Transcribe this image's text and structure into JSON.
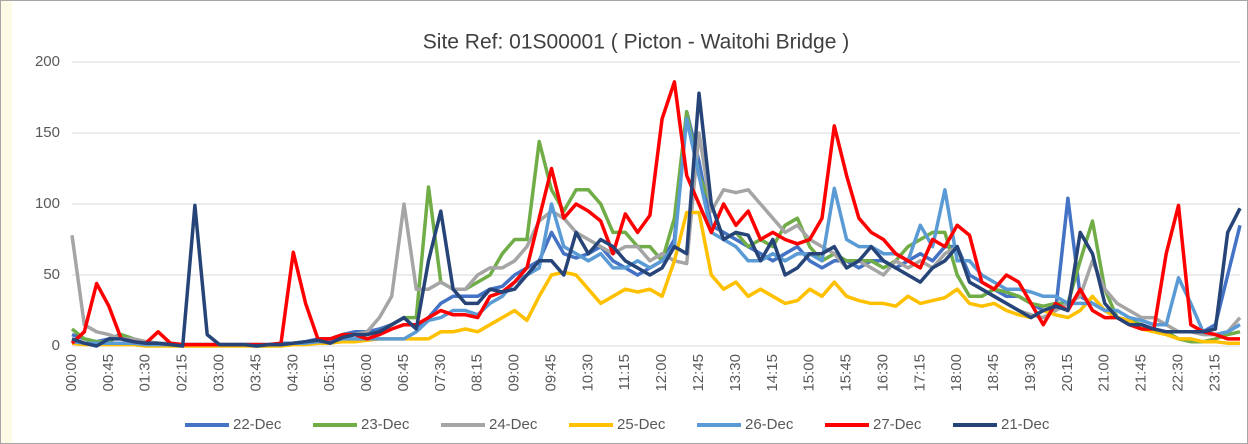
{
  "chart_data": {
    "type": "line",
    "title": "Site Ref: 01S00001 ( Picton - Waitohi Bridge )",
    "categories": [
      "00:00",
      null,
      null,
      "00:45",
      null,
      null,
      "01:30",
      null,
      null,
      "02:15",
      null,
      null,
      "03:00",
      null,
      null,
      "03:45",
      null,
      null,
      "04:30",
      null,
      null,
      "05:15",
      null,
      null,
      "06:00",
      null,
      null,
      "06:45",
      null,
      null,
      "07:30",
      null,
      null,
      "08:15",
      null,
      null,
      "09:00",
      null,
      null,
      "09:45",
      null,
      null,
      "10:30",
      null,
      null,
      "11:15",
      null,
      null,
      "12:00",
      null,
      null,
      "12:45",
      null,
      null,
      "13:30",
      null,
      null,
      "14:15",
      null,
      null,
      "15:00",
      null,
      null,
      "15:45",
      null,
      null,
      "16:30",
      null,
      null,
      "17:15",
      null,
      null,
      "18:00",
      null,
      null,
      "18:45",
      null,
      null,
      "19:30",
      null,
      null,
      "20:15",
      null,
      null,
      "21:00",
      null,
      null,
      "21:45",
      null,
      null,
      "22:30",
      null,
      null,
      "23:15",
      null,
      null
    ],
    "series": [
      {
        "name": "22-Dec",
        "color": "#4472c4",
        "values": [
          8,
          5,
          3,
          5,
          8,
          5,
          3,
          2,
          1,
          1,
          1,
          1,
          1,
          1,
          1,
          1,
          1,
          2,
          2,
          3,
          5,
          5,
          8,
          10,
          10,
          12,
          15,
          20,
          12,
          20,
          30,
          35,
          35,
          35,
          40,
          42,
          50,
          55,
          60,
          80,
          65,
          62,
          65,
          70,
          60,
          55,
          50,
          55,
          60,
          75,
          165,
          130,
          85,
          80,
          75,
          70,
          65,
          60,
          65,
          70,
          60,
          55,
          60,
          60,
          55,
          60,
          60,
          55,
          60,
          65,
          60,
          70,
          70,
          50,
          45,
          40,
          35,
          35,
          30,
          25,
          25,
          104,
          35,
          30,
          25,
          20,
          18,
          15,
          12,
          10,
          10,
          10,
          10,
          15,
          50,
          85
        ]
      },
      {
        "name": "23-Dec",
        "color": "#70ad47",
        "values": [
          12,
          5,
          3,
          3,
          8,
          5,
          3,
          2,
          1,
          1,
          1,
          1,
          1,
          1,
          1,
          0,
          0,
          1,
          2,
          3,
          3,
          2,
          5,
          8,
          8,
          10,
          15,
          20,
          20,
          112,
          45,
          40,
          40,
          45,
          50,
          65,
          75,
          75,
          144,
          110,
          95,
          110,
          110,
          100,
          80,
          80,
          70,
          70,
          60,
          90,
          165,
          120,
          100,
          75,
          80,
          70,
          75,
          70,
          85,
          90,
          70,
          60,
          65,
          60,
          60,
          60,
          55,
          60,
          70,
          75,
          80,
          80,
          50,
          35,
          35,
          40,
          38,
          35,
          30,
          28,
          30,
          30,
          60,
          88,
          40,
          20,
          18,
          15,
          10,
          10,
          5,
          3,
          3,
          5,
          8,
          10
        ]
      },
      {
        "name": "24-Dec",
        "color": "#a5a5a5",
        "values": [
          78,
          15,
          10,
          8,
          5,
          5,
          3,
          2,
          2,
          1,
          1,
          1,
          1,
          1,
          1,
          1,
          1,
          1,
          2,
          3,
          3,
          2,
          5,
          8,
          10,
          20,
          35,
          100,
          40,
          40,
          45,
          40,
          40,
          50,
          55,
          55,
          60,
          70,
          88,
          95,
          90,
          80,
          75,
          70,
          65,
          70,
          70,
          60,
          65,
          60,
          58,
          150,
          95,
          110,
          108,
          110,
          100,
          90,
          80,
          85,
          75,
          70,
          65,
          55,
          60,
          55,
          50,
          60,
          55,
          60,
          55,
          65,
          70,
          45,
          40,
          35,
          30,
          25,
          22,
          20,
          25,
          30,
          35,
          60,
          40,
          30,
          25,
          20,
          20,
          15,
          10,
          10,
          8,
          8,
          10,
          20
        ]
      },
      {
        "name": "25-Dec",
        "color": "#ffc000",
        "values": [
          2,
          1,
          1,
          1,
          1,
          1,
          0,
          0,
          0,
          0,
          0,
          0,
          0,
          0,
          0,
          0,
          0,
          0,
          1,
          1,
          2,
          2,
          3,
          3,
          4,
          5,
          5,
          5,
          5,
          5,
          10,
          10,
          12,
          10,
          15,
          20,
          25,
          18,
          35,
          50,
          52,
          50,
          40,
          30,
          35,
          40,
          38,
          40,
          35,
          60,
          94,
          94,
          50,
          40,
          45,
          35,
          40,
          35,
          30,
          32,
          40,
          35,
          45,
          35,
          32,
          30,
          30,
          28,
          35,
          30,
          32,
          34,
          40,
          30,
          28,
          30,
          25,
          22,
          20,
          25,
          22,
          20,
          25,
          35,
          25,
          20,
          18,
          12,
          10,
          8,
          5,
          5,
          3,
          3,
          2,
          2
        ]
      },
      {
        "name": "26-Dec",
        "color": "#5b9bd5",
        "values": [
          3,
          2,
          2,
          2,
          2,
          2,
          1,
          1,
          1,
          1,
          1,
          1,
          1,
          1,
          1,
          1,
          1,
          1,
          2,
          2,
          3,
          3,
          5,
          5,
          5,
          5,
          5,
          5,
          10,
          18,
          20,
          25,
          25,
          22,
          30,
          35,
          45,
          50,
          55,
          100,
          70,
          65,
          60,
          65,
          55,
          55,
          60,
          55,
          60,
          70,
          160,
          120,
          80,
          75,
          70,
          60,
          60,
          65,
          60,
          65,
          65,
          60,
          111,
          75,
          70,
          70,
          65,
          65,
          60,
          85,
          70,
          110,
          60,
          60,
          50,
          45,
          40,
          40,
          38,
          35,
          35,
          30,
          30,
          30,
          25,
          25,
          20,
          18,
          15,
          15,
          48,
          30,
          10,
          8,
          10,
          15
        ]
      },
      {
        "name": "27-Dec",
        "color": "#ff0000",
        "values": [
          2,
          10,
          44,
          28,
          5,
          3,
          2,
          10,
          2,
          1,
          1,
          1,
          1,
          1,
          1,
          1,
          1,
          2,
          66,
          30,
          5,
          5,
          8,
          8,
          5,
          8,
          12,
          15,
          15,
          20,
          25,
          22,
          22,
          20,
          35,
          38,
          45,
          55,
          90,
          125,
          90,
          100,
          95,
          88,
          65,
          93,
          80,
          92,
          160,
          186,
          120,
          100,
          80,
          100,
          85,
          95,
          75,
          80,
          75,
          72,
          75,
          90,
          155,
          120,
          90,
          80,
          75,
          65,
          60,
          55,
          75,
          70,
          85,
          78,
          45,
          40,
          50,
          45,
          30,
          15,
          30,
          25,
          40,
          25,
          20,
          20,
          15,
          12,
          12,
          65,
          99,
          15,
          10,
          8,
          5,
          5
        ]
      },
      {
        "name": "21-Dec",
        "color": "#264478",
        "values": [
          5,
          2,
          0,
          5,
          5,
          3,
          2,
          2,
          1,
          0,
          99,
          8,
          1,
          1,
          1,
          0,
          1,
          1,
          2,
          3,
          4,
          2,
          6,
          8,
          8,
          10,
          15,
          20,
          12,
          60,
          95,
          40,
          30,
          30,
          40,
          38,
          40,
          50,
          60,
          60,
          50,
          80,
          65,
          75,
          70,
          60,
          55,
          50,
          55,
          70,
          65,
          178,
          100,
          75,
          80,
          78,
          60,
          75,
          50,
          55,
          65,
          65,
          70,
          55,
          60,
          70,
          60,
          55,
          50,
          45,
          55,
          60,
          70,
          45,
          40,
          35,
          30,
          25,
          20,
          25,
          28,
          25,
          80,
          65,
          30,
          20,
          15,
          15,
          12,
          10,
          10,
          10,
          10,
          12,
          80,
          97
        ]
      }
    ],
    "ylim": [
      0,
      200
    ],
    "yticks": [
      0,
      50,
      100,
      150,
      200
    ],
    "grid": true,
    "legend": "bottom"
  }
}
